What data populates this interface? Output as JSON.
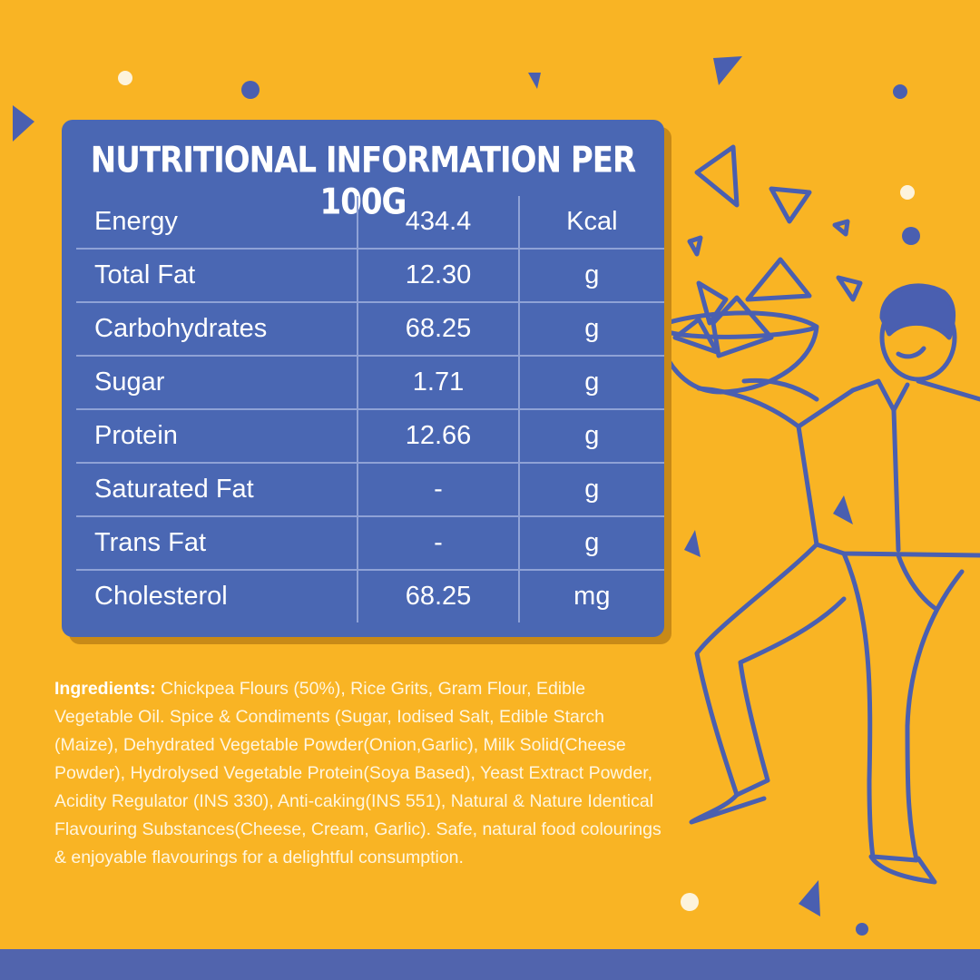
{
  "title": "NUTRITIONAL INFORMATION PER 100G",
  "nutrition": [
    {
      "name": "Energy",
      "value": "434.4",
      "unit": "Kcal"
    },
    {
      "name": "Total Fat",
      "value": "12.30",
      "unit": "g"
    },
    {
      "name": "Carbohydrates",
      "value": "68.25",
      "unit": "g"
    },
    {
      "name": "Sugar",
      "value": "1.71",
      "unit": "g"
    },
    {
      "name": "Protein",
      "value": "12.66",
      "unit": "g"
    },
    {
      "name": "Saturated Fat",
      "value": "-",
      "unit": "g"
    },
    {
      "name": "Trans Fat",
      "value": "-",
      "unit": "g"
    },
    {
      "name": "Cholesterol",
      "value": "68.25",
      "unit": "mg"
    }
  ],
  "ingredients": {
    "label": "Ingredients:",
    "text": " Chickpea Flours (50%), Rice Grits, Gram Flour, Edible Vegetable Oil. Spice & Condiments (Sugar, Iodised Salt, Edible Starch (Maize), Dehydrated Vegetable Powder(Onion,Garlic), Milk Solid(Cheese Powder), Hydrolysed Vegetable Protein(Soya Based), Yeast Extract Powder, Acidity Regulator (INS 330), Anti-caking(INS 551), Natural & Nature Identical Flavouring Substances(Cheese, Cream, Garlic). Safe, natural food colourings & enjoyable flavourings for a delightful consumption."
  },
  "colors": {
    "background": "#f9b424",
    "panel": "#4a67b3",
    "accent_blue": "#4a5fb0"
  },
  "illustration": "man-holding-bowl-of-nachos"
}
